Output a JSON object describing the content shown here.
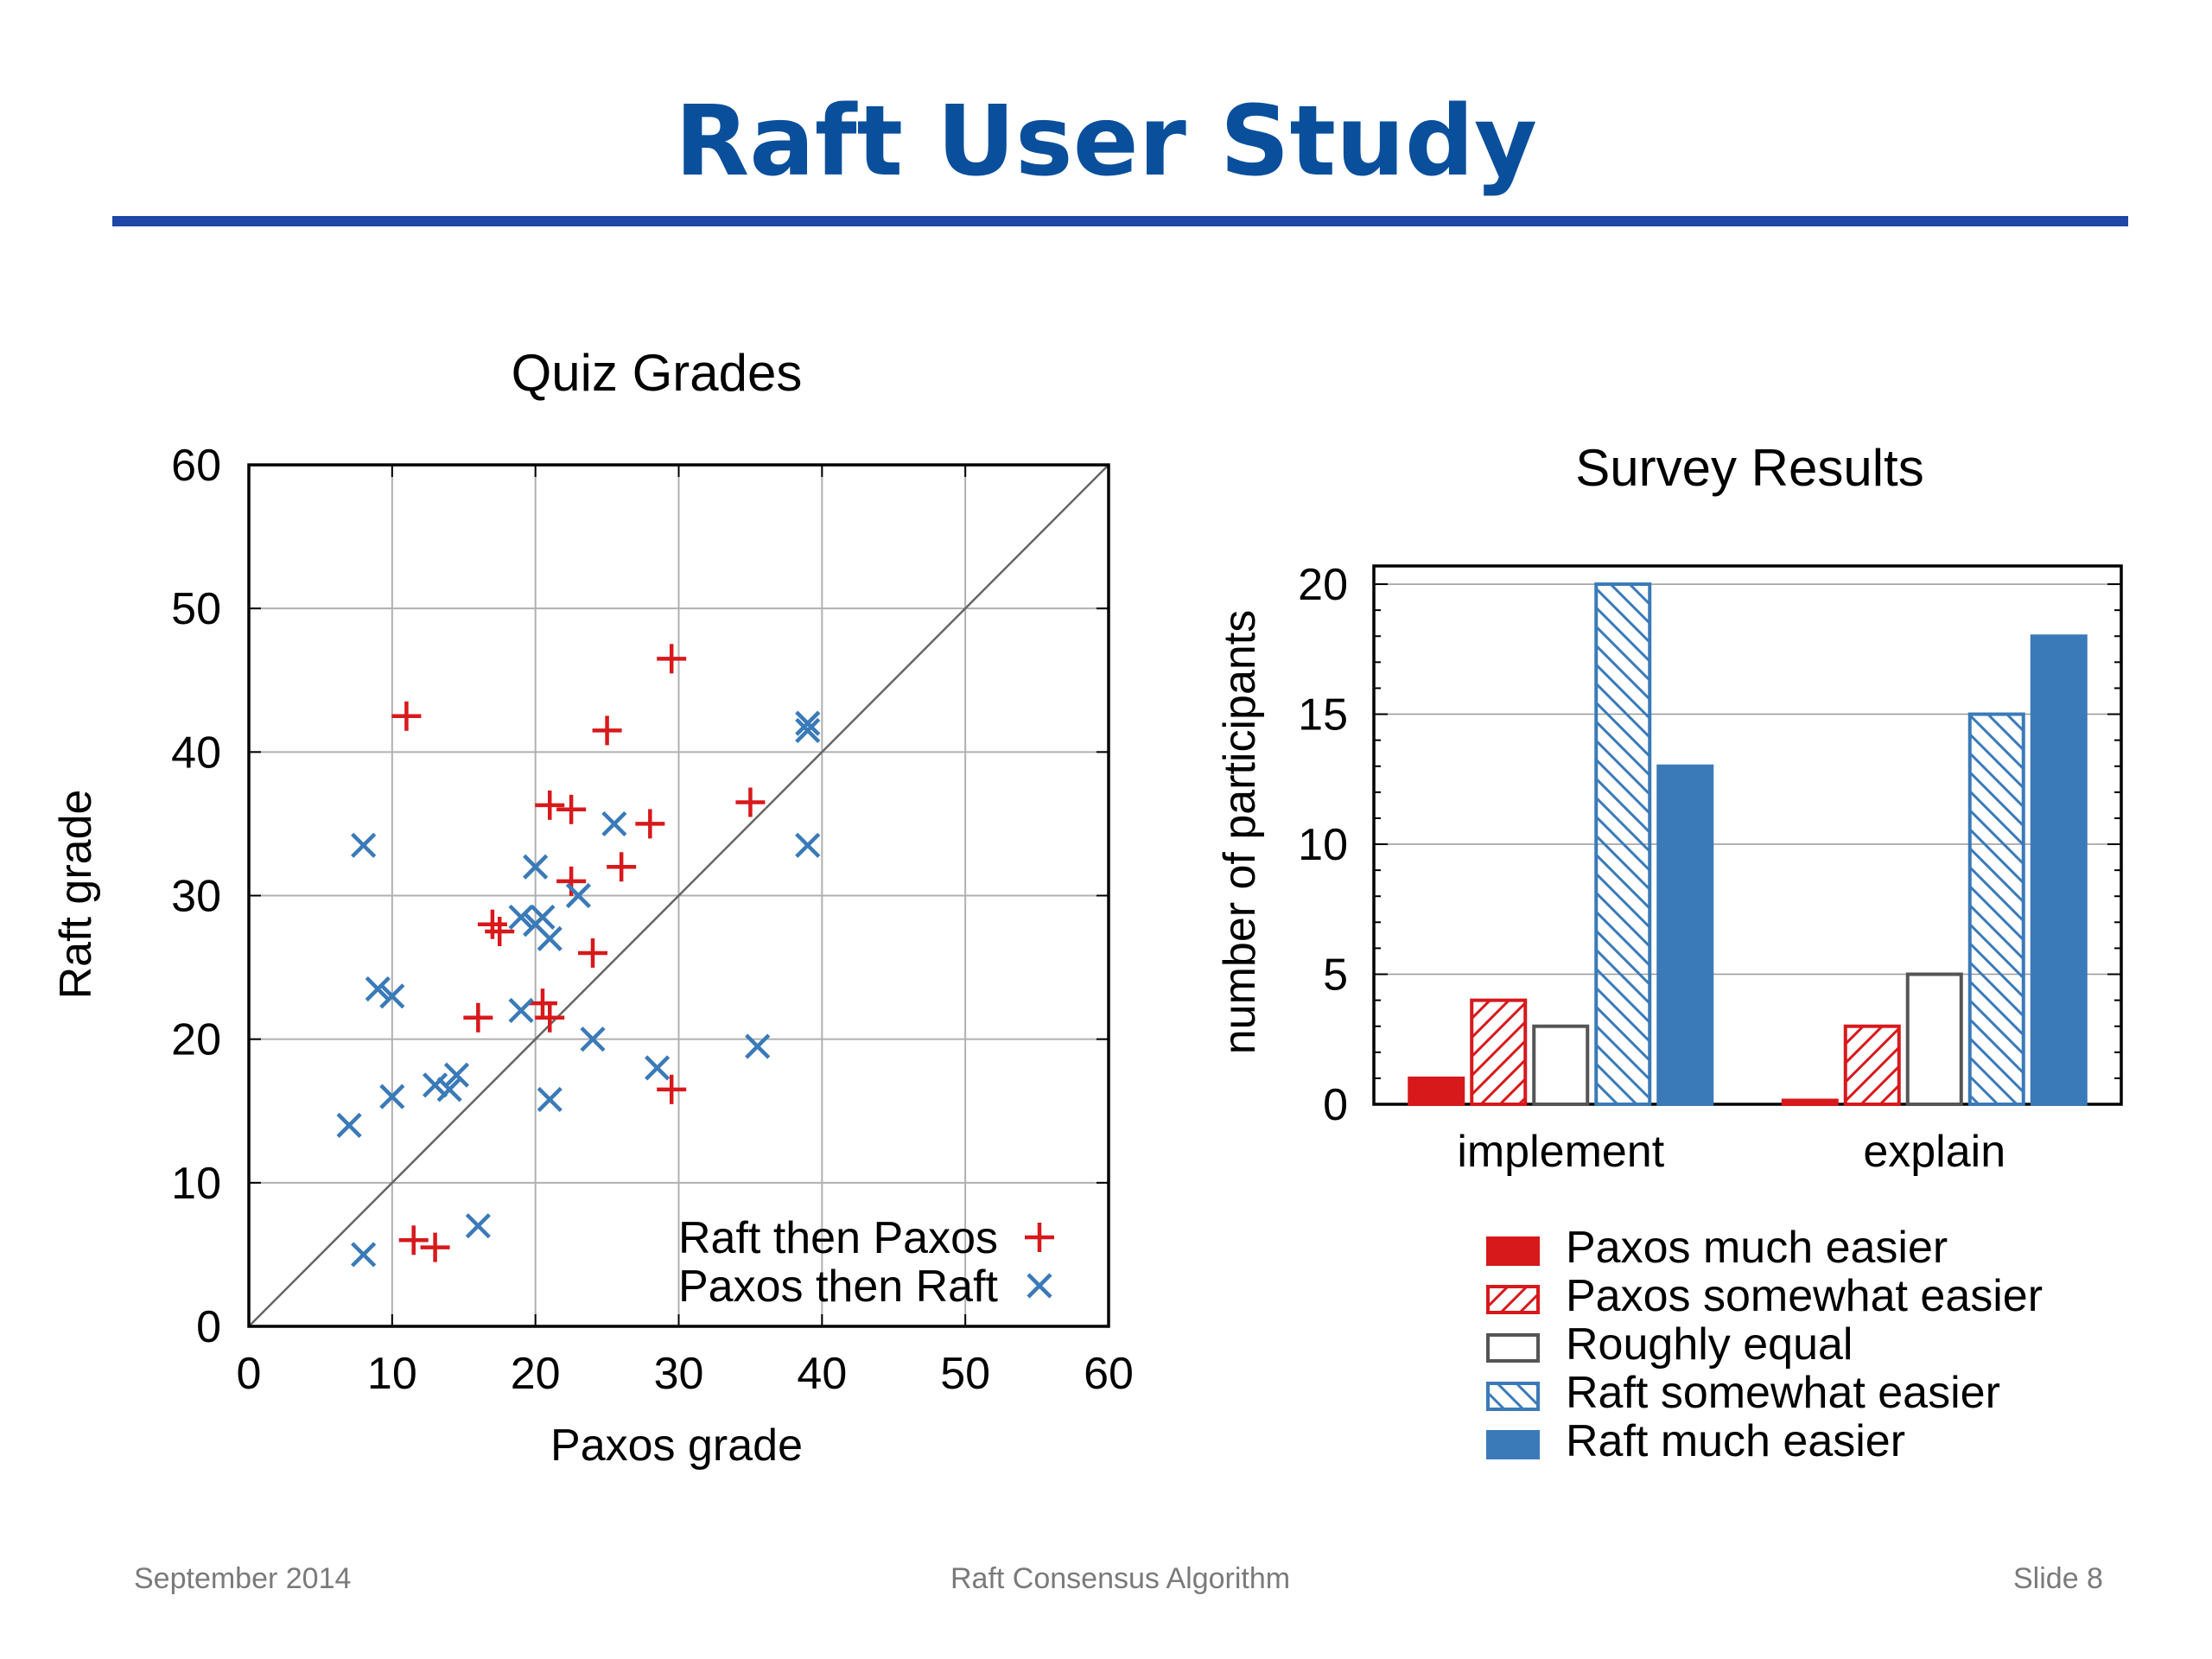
{
  "slide": {
    "title": "Raft User Study",
    "footer_left": "September 2014",
    "footer_center": "Raft Consensus Algorithm",
    "footer_right": "Slide 8"
  },
  "colors": {
    "title": "#0a4f9c",
    "rule": "#1f47a8",
    "red": "#d7191c",
    "blue": "#3a7ab8",
    "gray": "#555555",
    "footer": "#7a7a7a"
  },
  "chart_data": [
    {
      "type": "scatter",
      "title": "Quiz Grades",
      "xlabel": "Paxos grade",
      "ylabel": "Raft grade",
      "xlim": [
        0,
        60
      ],
      "ylim": [
        0,
        60
      ],
      "xticks": [
        0,
        10,
        20,
        30,
        40,
        50,
        60
      ],
      "yticks": [
        0,
        10,
        20,
        30,
        40,
        50,
        60
      ],
      "grid": true,
      "diagonal": true,
      "legend_position": "bottom-right",
      "series": [
        {
          "name": "Raft then Paxos",
          "marker": "plus",
          "color": "#d7191c",
          "points": [
            [
              11,
              42.5
            ],
            [
              29.5,
              46.5
            ],
            [
              25,
              41.5
            ],
            [
              21,
              36.3
            ],
            [
              22.5,
              36
            ],
            [
              28,
              35
            ],
            [
              35,
              36.5
            ],
            [
              26,
              32
            ],
            [
              22.5,
              31
            ],
            [
              17,
              28
            ],
            [
              17.5,
              27.5
            ],
            [
              24,
              26
            ],
            [
              16,
              21.5
            ],
            [
              20.5,
              22.5
            ],
            [
              21,
              21.5
            ],
            [
              29.5,
              16.5
            ],
            [
              11.5,
              6
            ],
            [
              13,
              5.5
            ]
          ]
        },
        {
          "name": "Paxos then Raft",
          "marker": "cross",
          "color": "#3a7ab8",
          "points": [
            [
              39,
              42
            ],
            [
              39,
              41.5
            ],
            [
              39,
              33.5
            ],
            [
              8,
              33.5
            ],
            [
              25.5,
              35
            ],
            [
              20,
              32
            ],
            [
              23,
              30
            ],
            [
              19,
              28.5
            ],
            [
              20.5,
              28.5
            ],
            [
              20,
              28
            ],
            [
              21,
              27
            ],
            [
              9,
              23.5
            ],
            [
              10,
              23
            ],
            [
              19,
              22
            ],
            [
              24,
              20
            ],
            [
              35.5,
              19.5
            ],
            [
              28.5,
              18
            ],
            [
              14.5,
              17.5
            ],
            [
              13,
              16.8
            ],
            [
              14,
              16.5
            ],
            [
              10,
              16
            ],
            [
              21,
              15.8
            ],
            [
              7,
              14
            ],
            [
              16,
              7
            ],
            [
              8,
              5
            ]
          ]
        }
      ]
    },
    {
      "type": "bar",
      "title": "Survey Results",
      "xlabel": "",
      "ylabel": "number of participants",
      "ylim": [
        0,
        20.7
      ],
      "yticks": [
        0,
        5,
        10,
        15,
        20
      ],
      "categories": [
        "implement",
        "explain"
      ],
      "legend_position": "bottom",
      "series": [
        {
          "name": "Paxos much easier",
          "style": "solid",
          "color": "#d7191c",
          "values": [
            1,
            0.15
          ]
        },
        {
          "name": "Paxos somewhat easier",
          "style": "hatch-forward",
          "color": "#d7191c",
          "values": [
            4,
            3
          ]
        },
        {
          "name": "Roughly equal",
          "style": "outline",
          "color": "#555555",
          "values": [
            3,
            5
          ]
        },
        {
          "name": "Raft somewhat easier",
          "style": "hatch-back",
          "color": "#3a7ab8",
          "values": [
            20,
            15
          ]
        },
        {
          "name": "Raft much easier",
          "style": "solid",
          "color": "#3a7ab8",
          "values": [
            13,
            18
          ]
        }
      ]
    }
  ]
}
